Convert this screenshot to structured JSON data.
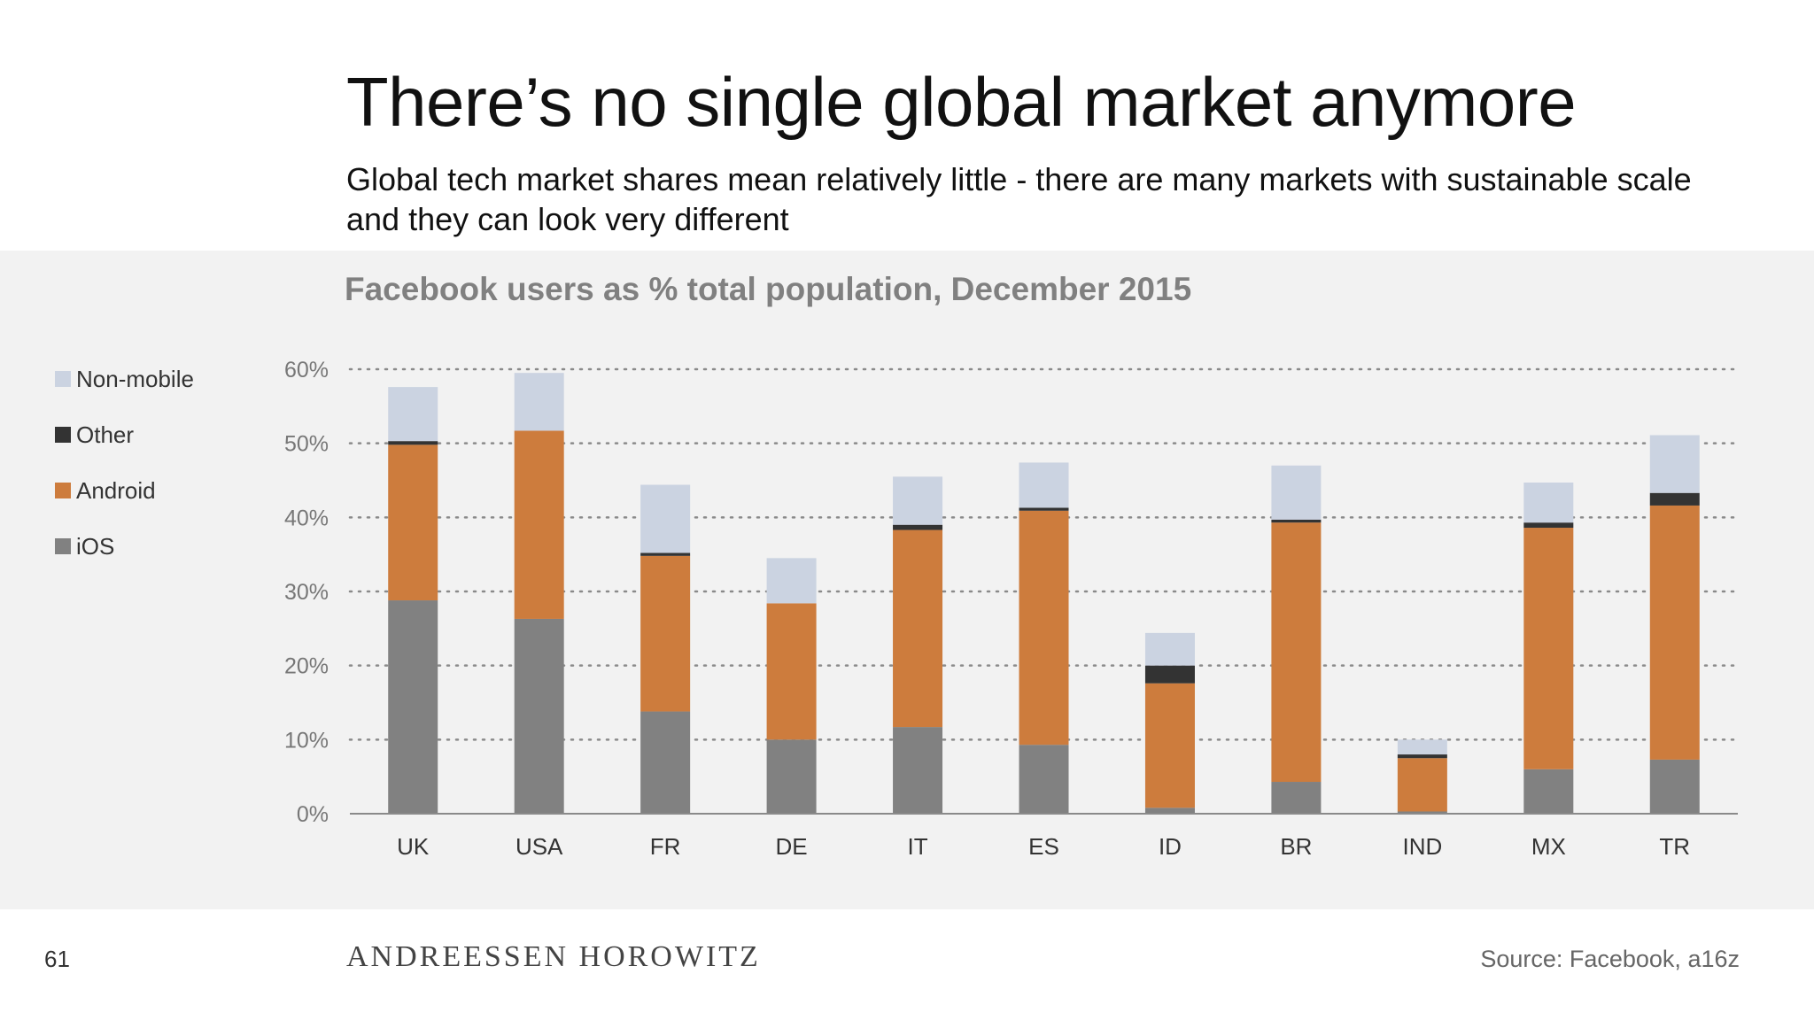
{
  "slide": {
    "title": "There’s no single global market anymore",
    "subtitle": "Global tech market shares mean relatively little - there are many markets with sustainable scale and they can look very different",
    "page_number": "61",
    "brand": "ANDREESSEN HOROWITZ",
    "source": "Source: Facebook, a16z"
  },
  "chart_data": {
    "type": "bar",
    "stacked": true,
    "title": "Facebook users as % total population, December 2015",
    "xlabel": "",
    "ylabel": "",
    "ylim": [
      0,
      60
    ],
    "yticks": [
      "0%",
      "10%",
      "20%",
      "30%",
      "40%",
      "50%",
      "60%"
    ],
    "grid": true,
    "legend_position": "left",
    "categories": [
      "UK",
      "USA",
      "FR",
      "DE",
      "IT",
      "ES",
      "ID",
      "BR",
      "IND",
      "MX",
      "TR"
    ],
    "series": [
      {
        "name": "iOS",
        "color": "#818181",
        "values": [
          28.8,
          26.3,
          13.8,
          10.0,
          11.7,
          9.3,
          0.8,
          4.3,
          0.3,
          6.0,
          7.3
        ]
      },
      {
        "name": "Android",
        "color": "#cd7c3d",
        "values": [
          21.0,
          25.4,
          21.0,
          18.4,
          26.6,
          31.6,
          16.8,
          35.0,
          7.2,
          32.6,
          34.3
        ]
      },
      {
        "name": "Other",
        "color": "#333333",
        "values": [
          0.5,
          0.0,
          0.4,
          0.0,
          0.7,
          0.4,
          2.4,
          0.4,
          0.5,
          0.7,
          1.7
        ]
      },
      {
        "name": "Non-mobile",
        "color": "#cbd3e1",
        "values": [
          7.3,
          7.8,
          9.2,
          6.1,
          6.5,
          6.1,
          4.4,
          7.3,
          2.0,
          5.4,
          7.8
        ]
      }
    ]
  }
}
